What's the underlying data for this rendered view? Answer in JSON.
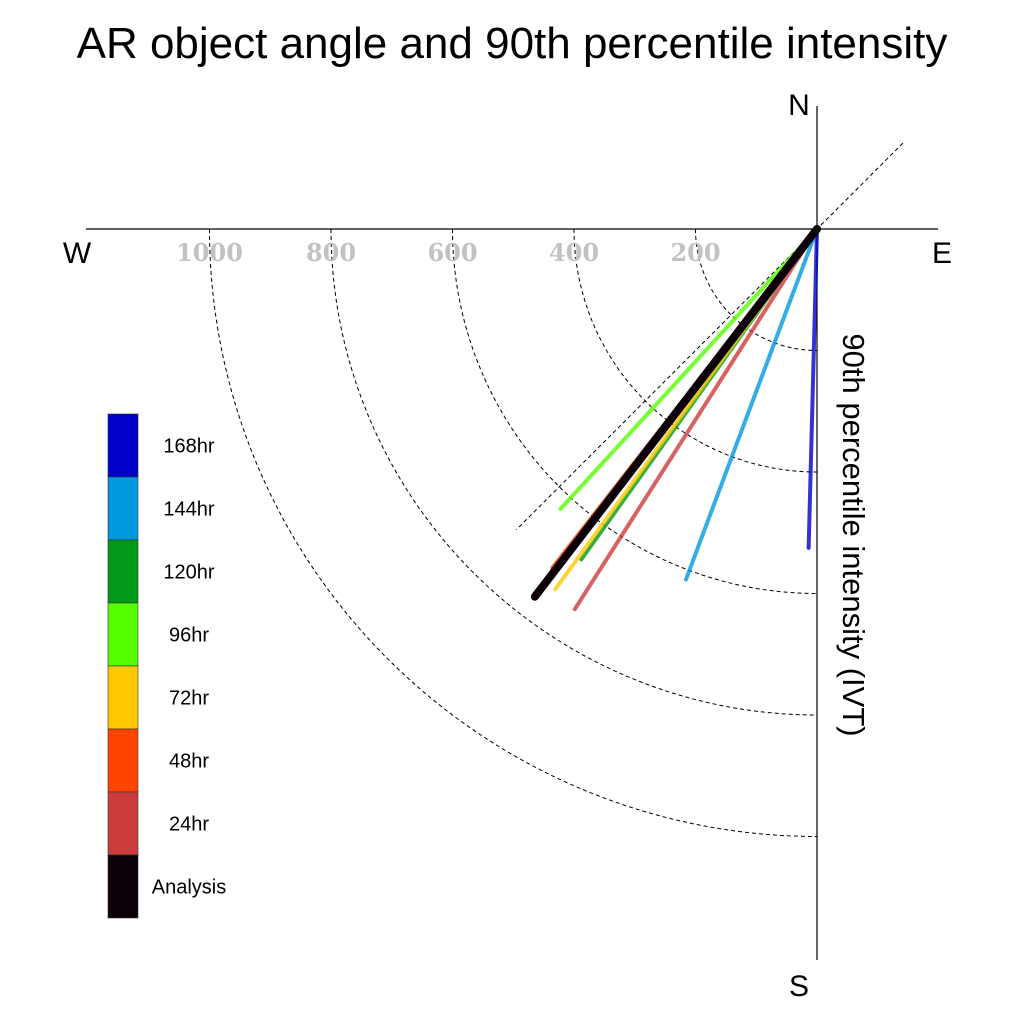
{
  "chart_data": {
    "type": "line",
    "subtype": "polar-quadrant",
    "title": "AR object angle and 90th percentile intensity",
    "ylabel": "90th percentile intensity (IVT)",
    "compass": {
      "north": "N",
      "south": "S",
      "east": "E",
      "west": "W"
    },
    "radial_ticks": [
      200,
      400,
      600,
      800,
      1000
    ],
    "radial_tick_labels": [
      "200",
      "400",
      "600",
      "800",
      "1000"
    ],
    "r_range": [
      0,
      1200
    ],
    "angle_unit": "degrees clockwise from north",
    "angle_range": [
      180,
      270
    ],
    "grid": true,
    "diagonal_reference_deg": [
      45,
      225
    ],
    "legend_position": "left",
    "series": [
      {
        "name": "168hr",
        "color": "#0000c8",
        "angle": 181.5,
        "intensity": 525
      },
      {
        "name": "144hr",
        "color": "#0099dd",
        "angle": 200.5,
        "intensity": 616
      },
      {
        "name": "120hr",
        "color": "#009a18",
        "angle": 215.5,
        "intensity": 668
      },
      {
        "name": "96hr",
        "color": "#55ff00",
        "angle": 222.5,
        "intensity": 625
      },
      {
        "name": "72hr",
        "color": "#ffc800",
        "angle": 216.0,
        "intensity": 733
      },
      {
        "name": "48hr",
        "color": "#ff4400",
        "angle": 218.0,
        "intensity": 708
      },
      {
        "name": "24hr",
        "color": "#cc3c3c",
        "angle": 212.5,
        "intensity": 742
      },
      {
        "name": "Analysis",
        "color": "#0b0008",
        "angle": 217.5,
        "intensity": 763
      }
    ]
  }
}
